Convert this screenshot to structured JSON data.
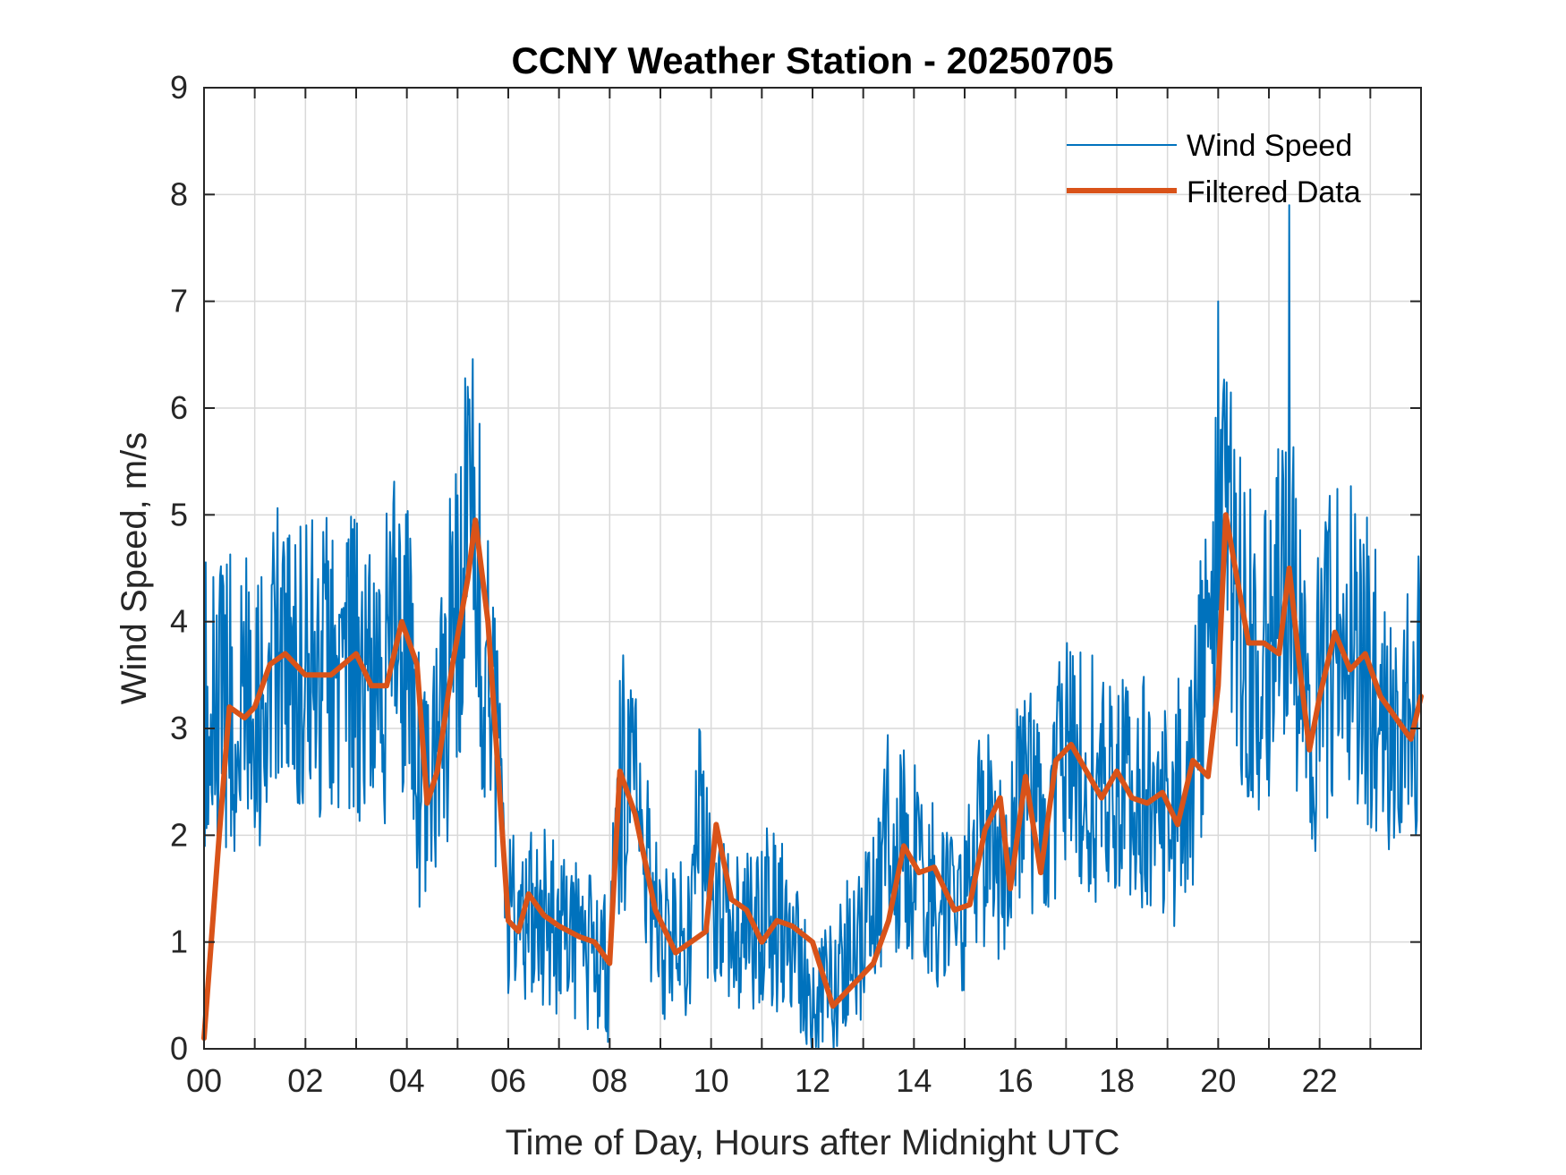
{
  "chart_data": {
    "type": "line",
    "title": "CCNY Weather Station - 20250705",
    "xlabel": "Time of Day, Hours after Midnight UTC",
    "ylabel": "Wind Speed, m/s",
    "xlim": [
      0,
      24
    ],
    "ylim": [
      0,
      9
    ],
    "xticks": [
      0,
      2,
      4,
      6,
      8,
      10,
      12,
      14,
      16,
      18,
      20,
      22
    ],
    "xtick_labels": [
      "00",
      "02",
      "04",
      "06",
      "08",
      "10",
      "12",
      "14",
      "16",
      "18",
      "20",
      "22"
    ],
    "yticks": [
      0,
      1,
      2,
      3,
      4,
      5,
      6,
      7,
      8,
      9
    ],
    "ytick_labels": [
      "0",
      "1",
      "2",
      "3",
      "4",
      "5",
      "6",
      "7",
      "8",
      "9"
    ],
    "grid": true,
    "legend_position": "top-right",
    "series": [
      {
        "name": "Wind Speed",
        "color": "#0072BD",
        "style": "thin-noisy",
        "x": [
          0,
          0.5,
          1,
          1.5,
          2,
          2.5,
          3,
          3.5,
          3.8,
          4,
          4.3,
          4.6,
          5,
          5.3,
          5.6,
          6,
          6.5,
          7,
          7.5,
          8,
          8.2,
          8.5,
          9,
          9.5,
          9.8,
          10,
          10.5,
          11,
          11.5,
          12,
          12.5,
          13,
          13.5,
          14,
          14.5,
          15,
          15.5,
          15.8,
          16,
          16.3,
          16.6,
          17,
          17.5,
          18,
          18.5,
          19,
          19.5,
          20,
          20.2,
          20.5,
          21,
          21.4,
          21.8,
          22,
          22.5,
          23,
          23.5,
          24
        ],
        "values": [
          3.2,
          3.3,
          3.2,
          3.7,
          3.5,
          3.5,
          3.7,
          3.4,
          4.0,
          3.8,
          2.3,
          2.7,
          4.3,
          4.9,
          3.6,
          1.2,
          1.3,
          1.1,
          1.0,
          0.8,
          2.6,
          2.2,
          0.9,
          1.1,
          2.1,
          1.4,
          1.0,
          1.2,
          1.1,
          0.4,
          0.7,
          1.1,
          1.9,
          1.7,
          1.3,
          1.3,
          2.3,
          1.5,
          2.3,
          2.6,
          1.6,
          2.8,
          2.5,
          2.4,
          2.3,
          2.1,
          2.7,
          4.8,
          4.9,
          3.8,
          3.6,
          4.5,
          2.9,
          3.5,
          3.9,
          3.6,
          2.9,
          3.3
        ],
        "peaks": [
          {
            "x": 5.2,
            "y": 6.2
          },
          {
            "x": 20.0,
            "y": 7.0
          },
          {
            "x": 21.4,
            "y": 7.9
          }
        ]
      },
      {
        "name": "Filtered Data",
        "color": "#D95319",
        "style": "thick",
        "x": [
          0,
          0.3,
          0.5,
          0.8,
          1.0,
          1.3,
          1.6,
          2.0,
          2.5,
          3.0,
          3.3,
          3.6,
          3.9,
          4.2,
          4.4,
          4.6,
          4.9,
          5.2,
          5.35,
          5.6,
          6.0,
          6.2,
          6.4,
          6.7,
          7.0,
          7.4,
          7.7,
          8.0,
          8.2,
          8.5,
          8.9,
          9.3,
          9.6,
          9.9,
          10.1,
          10.4,
          10.7,
          11.0,
          11.3,
          11.6,
          12.0,
          12.4,
          12.8,
          13.2,
          13.5,
          13.8,
          14.1,
          14.4,
          14.8,
          15.1,
          15.4,
          15.7,
          15.9,
          16.2,
          16.5,
          16.8,
          17.1,
          17.4,
          17.7,
          18.0,
          18.3,
          18.6,
          18.9,
          19.2,
          19.5,
          19.8,
          20.0,
          20.15,
          20.3,
          20.6,
          20.9,
          21.2,
          21.4,
          21.6,
          21.8,
          22.0,
          22.3,
          22.6,
          22.9,
          23.2,
          23.5,
          23.8,
          24.0
        ],
        "values": [
          0.1,
          2.0,
          3.2,
          3.1,
          3.2,
          3.6,
          3.7,
          3.5,
          3.5,
          3.7,
          3.4,
          3.4,
          4.0,
          3.6,
          2.3,
          2.6,
          3.6,
          4.4,
          4.95,
          4.0,
          1.2,
          1.1,
          1.45,
          1.25,
          1.15,
          1.05,
          1.0,
          0.8,
          2.6,
          2.2,
          1.3,
          0.9,
          1.0,
          1.1,
          2.1,
          1.4,
          1.3,
          1.0,
          1.2,
          1.15,
          1.0,
          0.4,
          0.6,
          0.8,
          1.2,
          1.9,
          1.65,
          1.7,
          1.3,
          1.35,
          2.05,
          2.35,
          1.5,
          2.55,
          1.65,
          2.7,
          2.85,
          2.6,
          2.35,
          2.6,
          2.35,
          2.3,
          2.4,
          2.1,
          2.7,
          2.55,
          3.4,
          5.0,
          4.6,
          3.8,
          3.8,
          3.7,
          4.5,
          3.6,
          2.8,
          3.3,
          3.9,
          3.55,
          3.7,
          3.3,
          3.1,
          2.9,
          3.3
        ]
      }
    ]
  }
}
